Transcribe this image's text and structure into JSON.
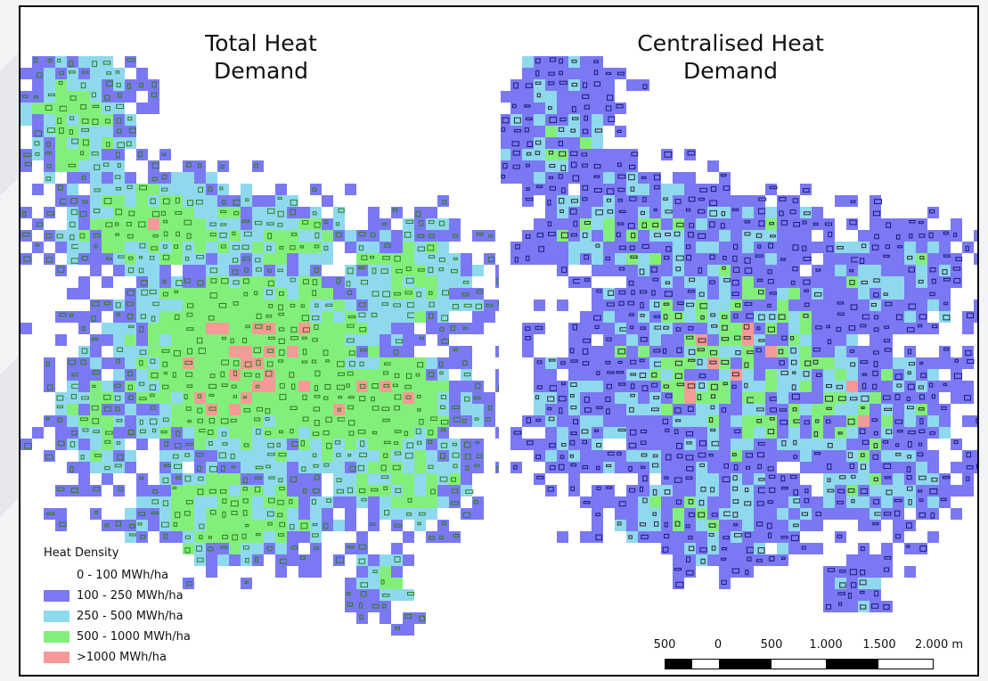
{
  "colors": {
    "none": "#ffffff",
    "low": "#7a78f2",
    "mid": "#8fd9ef",
    "high": "#82ef7b",
    "very_high": "#f59a96",
    "building_green": "#2f7d1f",
    "building_dark": "#2b2b2b",
    "building_blue": "#1a1a7a"
  },
  "maps": [
    {
      "title": "Total Heat Demand",
      "title_line1": "Total Heat",
      "title_line2": "Demand"
    },
    {
      "title": "Centralised Heat Demand",
      "title_line1": "Centralised Heat",
      "title_line2": "Demand"
    }
  ],
  "legend": {
    "title": "Heat Density",
    "items": [
      {
        "label": "0 - 100 MWh/ha",
        "color_key": "none"
      },
      {
        "label": "100 - 250 MWh/ha",
        "color_key": "low"
      },
      {
        "label": "250 - 500 MWh/ha",
        "color_key": "mid"
      },
      {
        "label": "500 - 1000 MWh/ha",
        "color_key": "high"
      },
      {
        "label": ">1000 MWh/ha",
        "color_key": "very_high"
      }
    ]
  },
  "scale_bar": {
    "labels": [
      "500",
      "0",
      "500",
      "1.000",
      "1.500",
      "2.000 m"
    ]
  }
}
